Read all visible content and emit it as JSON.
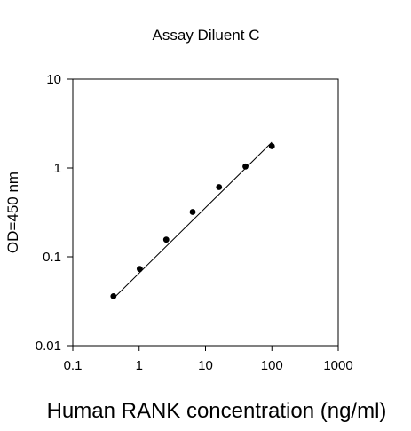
{
  "chart_data": {
    "type": "scatter",
    "title": "Assay Diluent C",
    "xlabel": "Human RANK concentration (ng/ml)",
    "ylabel": "OD=450 nm",
    "xscale": "log",
    "yscale": "log",
    "xlim": [
      0.1,
      1000
    ],
    "ylim": [
      0.01,
      10
    ],
    "x_ticks": [
      0.1,
      1,
      10,
      100,
      1000
    ],
    "x_tick_labels": [
      "0.1",
      "1",
      "10",
      "100",
      "1000"
    ],
    "y_ticks": [
      0.01,
      0.1,
      1,
      10
    ],
    "y_tick_labels": [
      "0.01",
      "0.1",
      "1",
      "10"
    ],
    "grid": false,
    "legend": "none",
    "series": [
      {
        "points": [
          {
            "x": 0.41,
            "y": 0.036
          },
          {
            "x": 1.02,
            "y": 0.073
          },
          {
            "x": 2.56,
            "y": 0.156
          },
          {
            "x": 6.4,
            "y": 0.32
          },
          {
            "x": 16,
            "y": 0.61
          },
          {
            "x": 40,
            "y": 1.04
          },
          {
            "x": 100,
            "y": 1.76
          }
        ],
        "fit": {
          "type": "line",
          "x": [
            0.41,
            100
          ],
          "y": [
            0.034,
            1.95
          ]
        }
      }
    ],
    "colors": {
      "marker": "#000000",
      "line": "#000000",
      "frame": "#000000"
    }
  }
}
